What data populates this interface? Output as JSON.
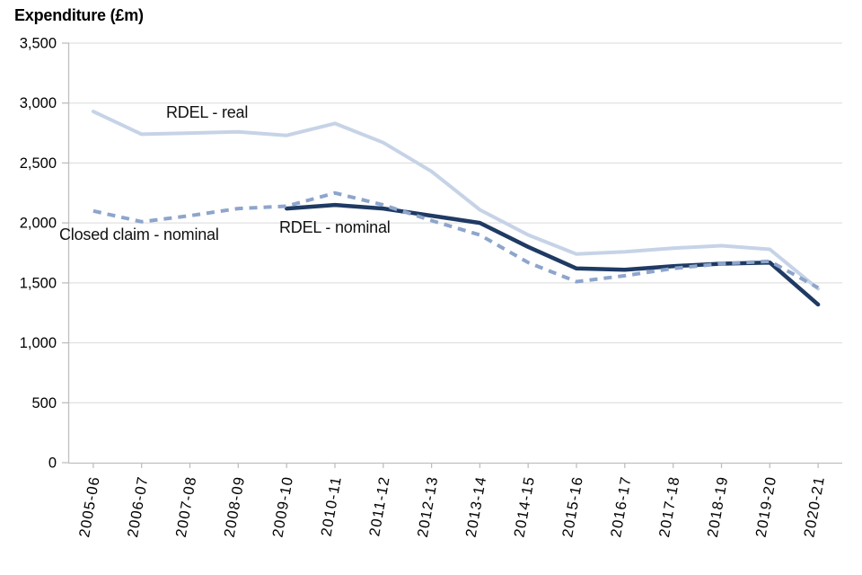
{
  "chart_data": {
    "type": "line",
    "title": "Expenditure (£m)",
    "xlabel": "",
    "ylabel": "Expenditure (£m)",
    "categories": [
      "2005-06",
      "2006-07",
      "2007-08",
      "2008-09",
      "2009-10",
      "2010-11",
      "2011-12",
      "2012-13",
      "2013-14",
      "2014-15",
      "2015-16",
      "2016-17",
      "2017-18",
      "2018-19",
      "2019-20",
      "2020-21"
    ],
    "series": [
      {
        "name": "RDEL - real",
        "style": "solid",
        "color": "#C6D3E7",
        "stroke_width": 4,
        "values": [
          2930,
          2740,
          2750,
          2760,
          2730,
          2830,
          2670,
          2430,
          2110,
          1900,
          1740,
          1760,
          1790,
          1810,
          1780,
          1450
        ]
      },
      {
        "name": "RDEL - nominal",
        "style": "solid",
        "color": "#1F3A63",
        "stroke_width": 4.5,
        "values": [
          null,
          null,
          null,
          null,
          2120,
          2150,
          2120,
          2060,
          2000,
          1800,
          1620,
          1610,
          1640,
          1660,
          1670,
          1320
        ]
      },
      {
        "name": "Closed claim - nominal",
        "style": "dashed",
        "color": "#8EA5CC",
        "stroke_width": 4,
        "values": [
          2100,
          2010,
          2060,
          2120,
          2140,
          2250,
          2150,
          2020,
          1900,
          1670,
          1510,
          1560,
          1620,
          1660,
          1680,
          1460
        ]
      }
    ],
    "ylim": [
      0,
      3500
    ],
    "ytick_step": 500,
    "ytick_labels": [
      "0",
      "500",
      "1,000",
      "1,500",
      "2,000",
      "2,500",
      "3,000",
      "3,500"
    ],
    "grid": "horizontal gridlines every 500, light gray",
    "legend": "inline text labels next to lines",
    "annotations": [
      {
        "text": "RDEL - real",
        "x": 185,
        "y": 115
      },
      {
        "text": "RDEL - nominal",
        "x": 311,
        "y": 243
      },
      {
        "text": "Closed claim - nominal",
        "x": 66,
        "y": 251
      }
    ]
  },
  "colors": {
    "background": "#FFFFFF",
    "gridline": "#D9D9D9",
    "axis": "#BFBFBF",
    "text": "#000000",
    "series_rdel_real": "#C6D3E7",
    "series_rdel_nominal": "#1F3A63",
    "series_closed_claim_nominal": "#8EA5CC"
  }
}
